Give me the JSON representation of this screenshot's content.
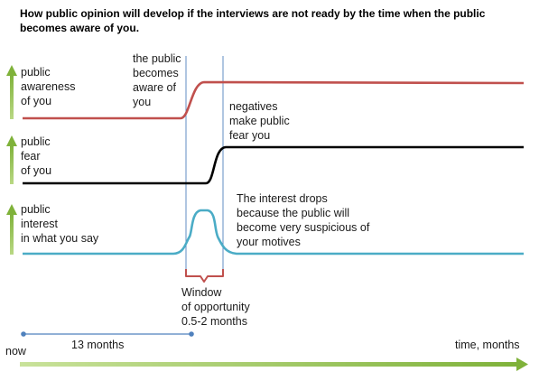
{
  "title_lines": [
    "How public opinion will develop if the interviews are not ready by the time when the public",
    "becomes aware of you."
  ],
  "rows": [
    {
      "label_lines": [
        "public",
        "awareness",
        "of you"
      ],
      "color": "#c0504d"
    },
    {
      "label_lines": [
        "public",
        "fear",
        "of you"
      ],
      "color": "#000000"
    },
    {
      "label_lines": [
        "public",
        "interest",
        "in what you say"
      ],
      "color": "#4bacc6"
    }
  ],
  "annotations": {
    "becomes_aware": [
      "the public",
      "becomes",
      "aware of",
      "you"
    ],
    "negatives": [
      "negatives",
      "make public",
      "fear you"
    ],
    "interest_drops": [
      "The interest drops",
      "because the public will",
      "become very suspicious of",
      "your motives"
    ],
    "window": [
      "Window",
      "of opportunity",
      "0.5-2 months"
    ]
  },
  "timeline": {
    "start_label": "now",
    "span_label": "13 months",
    "axis_label": "time, months"
  },
  "colors": {
    "arrow_green": "#8cbd45",
    "guide_blue": "#4f81bd",
    "brace_red": "#c0504d"
  }
}
